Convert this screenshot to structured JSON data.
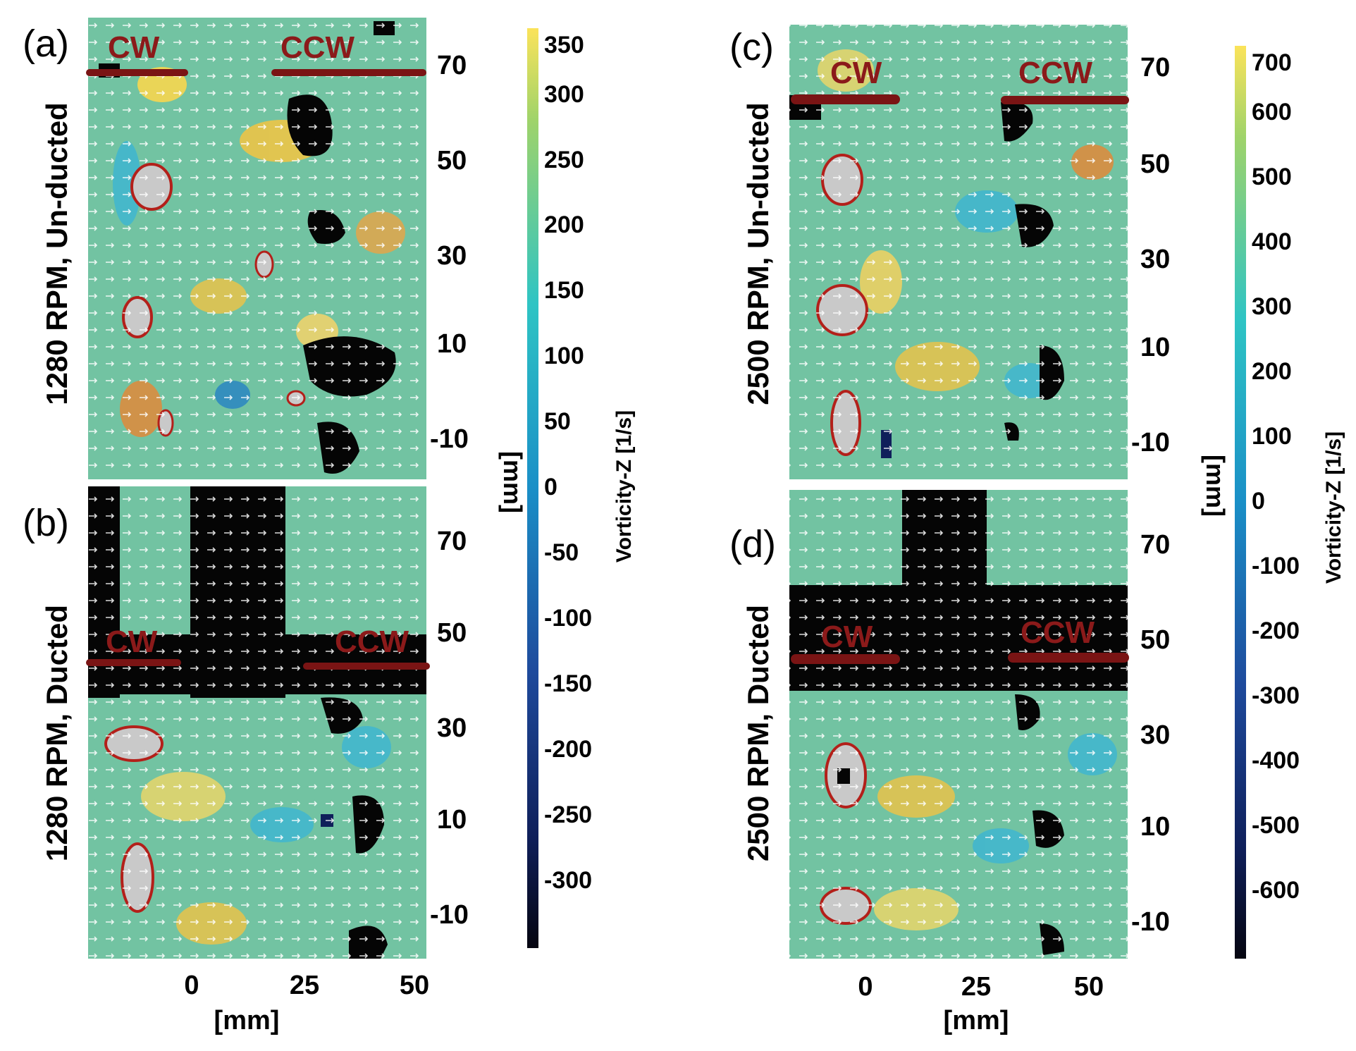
{
  "chart_data": [
    {
      "type": "heatmap",
      "panel_label": "(a)",
      "row_title": "1280 RPM, Un-ducted",
      "rotor_labels": [
        "CW",
        "CCW"
      ],
      "x_ticks": [],
      "y_ticks": [
        "70",
        "50",
        "30",
        "10",
        "-10"
      ],
      "y_unit": "[mm]",
      "x_unit": "",
      "colorbar_ref": "left"
    },
    {
      "type": "heatmap",
      "panel_label": "(b)",
      "row_title": "1280 RPM, Ducted",
      "rotor_labels": [
        "CW",
        "CCW"
      ],
      "x_ticks": [
        "0",
        "25",
        "50"
      ],
      "y_ticks": [
        "70",
        "50",
        "30",
        "10",
        "-10"
      ],
      "y_unit": "",
      "x_unit": "[mm]",
      "colorbar_ref": "left"
    },
    {
      "type": "heatmap",
      "panel_label": "(c)",
      "row_title": "2500 RPM, Un-ducted",
      "rotor_labels": [
        "CW",
        "CCW"
      ],
      "x_ticks": [],
      "y_ticks": [
        "70",
        "50",
        "30",
        "10",
        "-10"
      ],
      "y_unit": "[mm]",
      "x_unit": "",
      "colorbar_ref": "right"
    },
    {
      "type": "heatmap",
      "panel_label": "(d)",
      "row_title": "2500 RPM, Ducted",
      "rotor_labels": [
        "CW",
        "CCW"
      ],
      "x_ticks": [
        "0",
        "25",
        "50"
      ],
      "y_ticks": [
        "70",
        "50",
        "30",
        "10",
        "-10"
      ],
      "y_unit": "",
      "x_unit": "[mm]",
      "colorbar_ref": "right"
    }
  ],
  "colorbars": {
    "left": {
      "label": "Vorticity-Z [1/s]",
      "ticks": [
        "350",
        "300",
        "250",
        "200",
        "150",
        "100",
        "50",
        "0",
        "-50",
        "-100",
        "-150",
        "-200",
        "-250",
        "-300"
      ],
      "range": [
        -350,
        360
      ]
    },
    "right": {
      "label": "Vorticity-Z [1/s]",
      "ticks": [
        "700",
        "600",
        "500",
        "400",
        "300",
        "200",
        "100",
        "0",
        "-100",
        "-200",
        "-300",
        "-400",
        "-500",
        "-600"
      ],
      "range": [
        -700,
        720
      ]
    }
  },
  "colors": {
    "rotor_bar": "#7a1414",
    "rotor_text": "#8b1a1a",
    "field_base": "#6fc0a0",
    "vector": "#ffffff"
  }
}
